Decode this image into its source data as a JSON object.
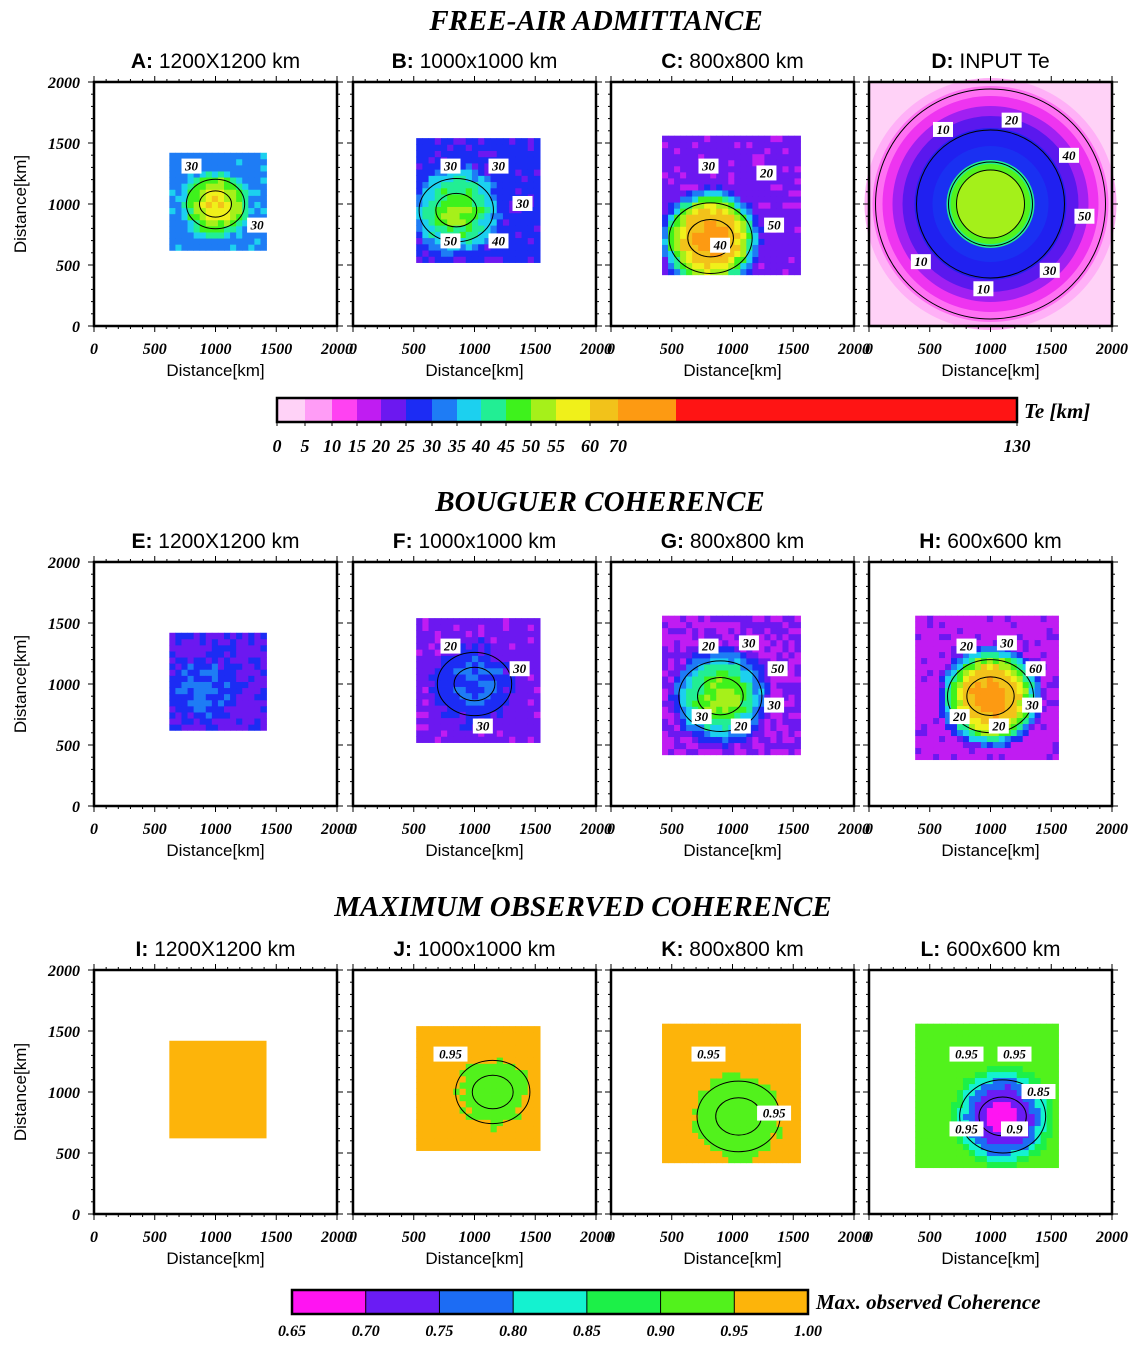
{
  "sections": [
    {
      "title": "FREE-AIR ADMITTANCE"
    },
    {
      "title": "BOUGUER COHERENCE"
    },
    {
      "title": "MAXIMUM OBSERVED COHERENCE"
    }
  ],
  "axes": {
    "xlabel": "Distance[km]",
    "ylabel": "Distance[km]",
    "ticks": [
      "0",
      "500",
      "1000",
      "1500",
      "2000"
    ]
  },
  "panels": [
    {
      "id": "A",
      "letter": "A:",
      "title": "1200X1200 km",
      "row": 0,
      "col": 0,
      "kind": "te",
      "window_km": 1200,
      "extent": [
        620,
        1420,
        620,
        1420
      ],
      "contours": [
        "30",
        "30"
      ]
    },
    {
      "id": "B",
      "letter": "B:",
      "title": "1000x1000 km",
      "row": 0,
      "col": 1,
      "kind": "te",
      "window_km": 1000,
      "extent": [
        520,
        1540,
        520,
        1540
      ],
      "contours": [
        "30",
        "30",
        "30",
        "40",
        "50"
      ]
    },
    {
      "id": "C",
      "letter": "C:",
      "title": "800x800 km",
      "row": 0,
      "col": 2,
      "kind": "te",
      "window_km": 800,
      "extent": [
        420,
        1560,
        420,
        1560
      ],
      "contours": [
        "30",
        "20",
        "50",
        "40"
      ]
    },
    {
      "id": "D",
      "letter": "D:",
      "title": "INPUT Te",
      "row": 0,
      "col": 3,
      "kind": "input",
      "contours": [
        "10",
        "20",
        "40",
        "50",
        "30",
        "10",
        "10"
      ]
    },
    {
      "id": "E",
      "letter": "E:",
      "title": "1200X1200 km",
      "row": 1,
      "col": 0,
      "kind": "te",
      "window_km": 1200,
      "extent": [
        620,
        1420,
        620,
        1420
      ],
      "contours": []
    },
    {
      "id": "F",
      "letter": "F:",
      "title": "1000x1000 km",
      "row": 1,
      "col": 1,
      "kind": "te",
      "window_km": 1000,
      "extent": [
        520,
        1540,
        520,
        1540
      ],
      "contours": [
        "20",
        "30",
        "30"
      ]
    },
    {
      "id": "G",
      "letter": "G:",
      "title": "800x800 km",
      "row": 1,
      "col": 2,
      "kind": "te",
      "window_km": 800,
      "extent": [
        420,
        1560,
        420,
        1560
      ],
      "contours": [
        "20",
        "30",
        "50",
        "30",
        "20",
        "30"
      ]
    },
    {
      "id": "H",
      "letter": "H:",
      "title": "600x600 km",
      "row": 1,
      "col": 3,
      "kind": "te",
      "window_km": 600,
      "extent": [
        380,
        1560,
        380,
        1560
      ],
      "contours": [
        "20",
        "30",
        "60",
        "30",
        "20",
        "20"
      ]
    },
    {
      "id": "I",
      "letter": "I:",
      "title": "1200X1200 km",
      "row": 2,
      "col": 0,
      "kind": "coh",
      "window_km": 1200,
      "extent": [
        620,
        1420,
        620,
        1420
      ],
      "contours": []
    },
    {
      "id": "J",
      "letter": "J:",
      "title": "1000x1000 km",
      "row": 2,
      "col": 1,
      "kind": "coh",
      "window_km": 1000,
      "extent": [
        520,
        1540,
        520,
        1540
      ],
      "contours": [
        "0.95"
      ]
    },
    {
      "id": "K",
      "letter": "K:",
      "title": "800x800 km",
      "row": 2,
      "col": 2,
      "kind": "coh",
      "window_km": 800,
      "extent": [
        420,
        1560,
        420,
        1560
      ],
      "contours": [
        "0.95",
        "0.95"
      ]
    },
    {
      "id": "L",
      "letter": "L:",
      "title": "600x600 km",
      "row": 2,
      "col": 3,
      "kind": "coh",
      "window_km": 600,
      "extent": [
        380,
        1560,
        380,
        1560
      ],
      "contours": [
        "0.95",
        "0.95",
        "0.85",
        "0.9",
        "0.95"
      ]
    }
  ],
  "colorbars": [
    {
      "id": "te",
      "label": "Te [km]",
      "tick_labels": [
        "0",
        "5",
        "10",
        "15",
        "20",
        "25",
        "30",
        "35",
        "40",
        "45",
        "50",
        "55",
        "60",
        "70",
        "130"
      ],
      "tick_values": [
        0,
        5,
        10,
        15,
        20,
        25,
        30,
        35,
        40,
        45,
        50,
        55,
        60,
        70,
        130
      ],
      "colors": [
        "#ffd2f7",
        "#ff9cf6",
        "#ff42f2",
        "#c01cf2",
        "#6c18f0",
        "#1c2cf4",
        "#1e7cf5",
        "#1cd0ef",
        "#22ee94",
        "#3ef21c",
        "#a6f01a",
        "#f0f01a",
        "#f2c21a",
        "#fd9a12",
        "#ff1414"
      ]
    },
    {
      "id": "coh",
      "label": "Max. observed Coherence",
      "tick_labels": [
        "0.65",
        "0.70",
        "0.75",
        "0.80",
        "0.85",
        "0.90",
        "0.95",
        "1.00"
      ],
      "tick_values": [
        0.65,
        0.7,
        0.75,
        0.8,
        0.85,
        0.9,
        0.95,
        1.0
      ],
      "colors": [
        "#ff14f2",
        "#6a1cf4",
        "#1c6cf4",
        "#14f2d0",
        "#1cf048",
        "#52f21c",
        "#a4f018",
        "#fdb40a"
      ]
    }
  ],
  "chart_data": {
    "type": "heatmap",
    "title": "",
    "xlabel": "Distance[km]",
    "ylabel": "Distance[km]",
    "xlim": [
      0,
      2000
    ],
    "ylim": [
      0,
      2000
    ],
    "panels": [
      {
        "name": "A: 1200X1200 km",
        "quantity": "Te [km]",
        "extent_km": [
          620,
          1420,
          620,
          1420
        ],
        "center_km": [
          1000,
          1000
        ],
        "center_te": 60,
        "background_te": 33
      },
      {
        "name": "B: 1000x1000 km",
        "quantity": "Te [km]",
        "extent_km": [
          520,
          1540,
          520,
          1540
        ],
        "center_km": [
          850,
          950
        ],
        "center_te": 50,
        "background_te": 27
      },
      {
        "name": "C: 800x800 km",
        "quantity": "Te [km]",
        "extent_km": [
          420,
          1560,
          420,
          1560
        ],
        "center_km": [
          820,
          720
        ],
        "center_te": 75,
        "background_te": 22
      },
      {
        "name": "D: INPUT Te",
        "quantity": "Te [km]",
        "profile": "radial",
        "center_km": [
          1000,
          1000
        ],
        "core_te": 50,
        "core_radius_km": 330,
        "outer_te": 5
      },
      {
        "name": "E: 1200X1200 km",
        "quantity": "Te [km]",
        "extent_km": [
          620,
          1420,
          620,
          1420
        ],
        "center_km": [
          900,
          950
        ],
        "center_te": 32,
        "background_te": 24
      },
      {
        "name": "F: 1000x1000 km",
        "quantity": "Te [km]",
        "extent_km": [
          520,
          1540,
          520,
          1540
        ],
        "center_km": [
          1000,
          1000
        ],
        "center_te": 31,
        "background_te": 22
      },
      {
        "name": "G: 800x800 km",
        "quantity": "Te [km]",
        "extent_km": [
          420,
          1560,
          420,
          1560
        ],
        "center_km": [
          900,
          900
        ],
        "center_te": 52,
        "background_te": 20
      },
      {
        "name": "H: 600x600 km",
        "quantity": "Te [km]",
        "extent_km": [
          380,
          1560,
          380,
          1560
        ],
        "center_km": [
          1000,
          900
        ],
        "center_te": 75,
        "background_te": 18
      },
      {
        "name": "I: 1200X1200 km",
        "quantity": "Max. observed Coherence",
        "extent_km": [
          620,
          1420,
          620,
          1420
        ],
        "value": 0.97
      },
      {
        "name": "J: 1000x1000 km",
        "quantity": "Max. observed Coherence",
        "extent_km": [
          520,
          1540,
          520,
          1540
        ],
        "center_km": [
          1150,
          1000
        ],
        "center_coh": 0.93,
        "background_coh": 0.97
      },
      {
        "name": "K: 800x800 km",
        "quantity": "Max. observed Coherence",
        "extent_km": [
          420,
          1560,
          420,
          1560
        ],
        "center_km": [
          1050,
          800
        ],
        "center_coh": 0.91,
        "background_coh": 0.97
      },
      {
        "name": "L: 600x600 km",
        "quantity": "Max. observed Coherence",
        "extent_km": [
          380,
          1560,
          380,
          1560
        ],
        "center_km": [
          1100,
          800
        ],
        "center_coh": 0.68,
        "background_coh": 0.93
      }
    ]
  }
}
